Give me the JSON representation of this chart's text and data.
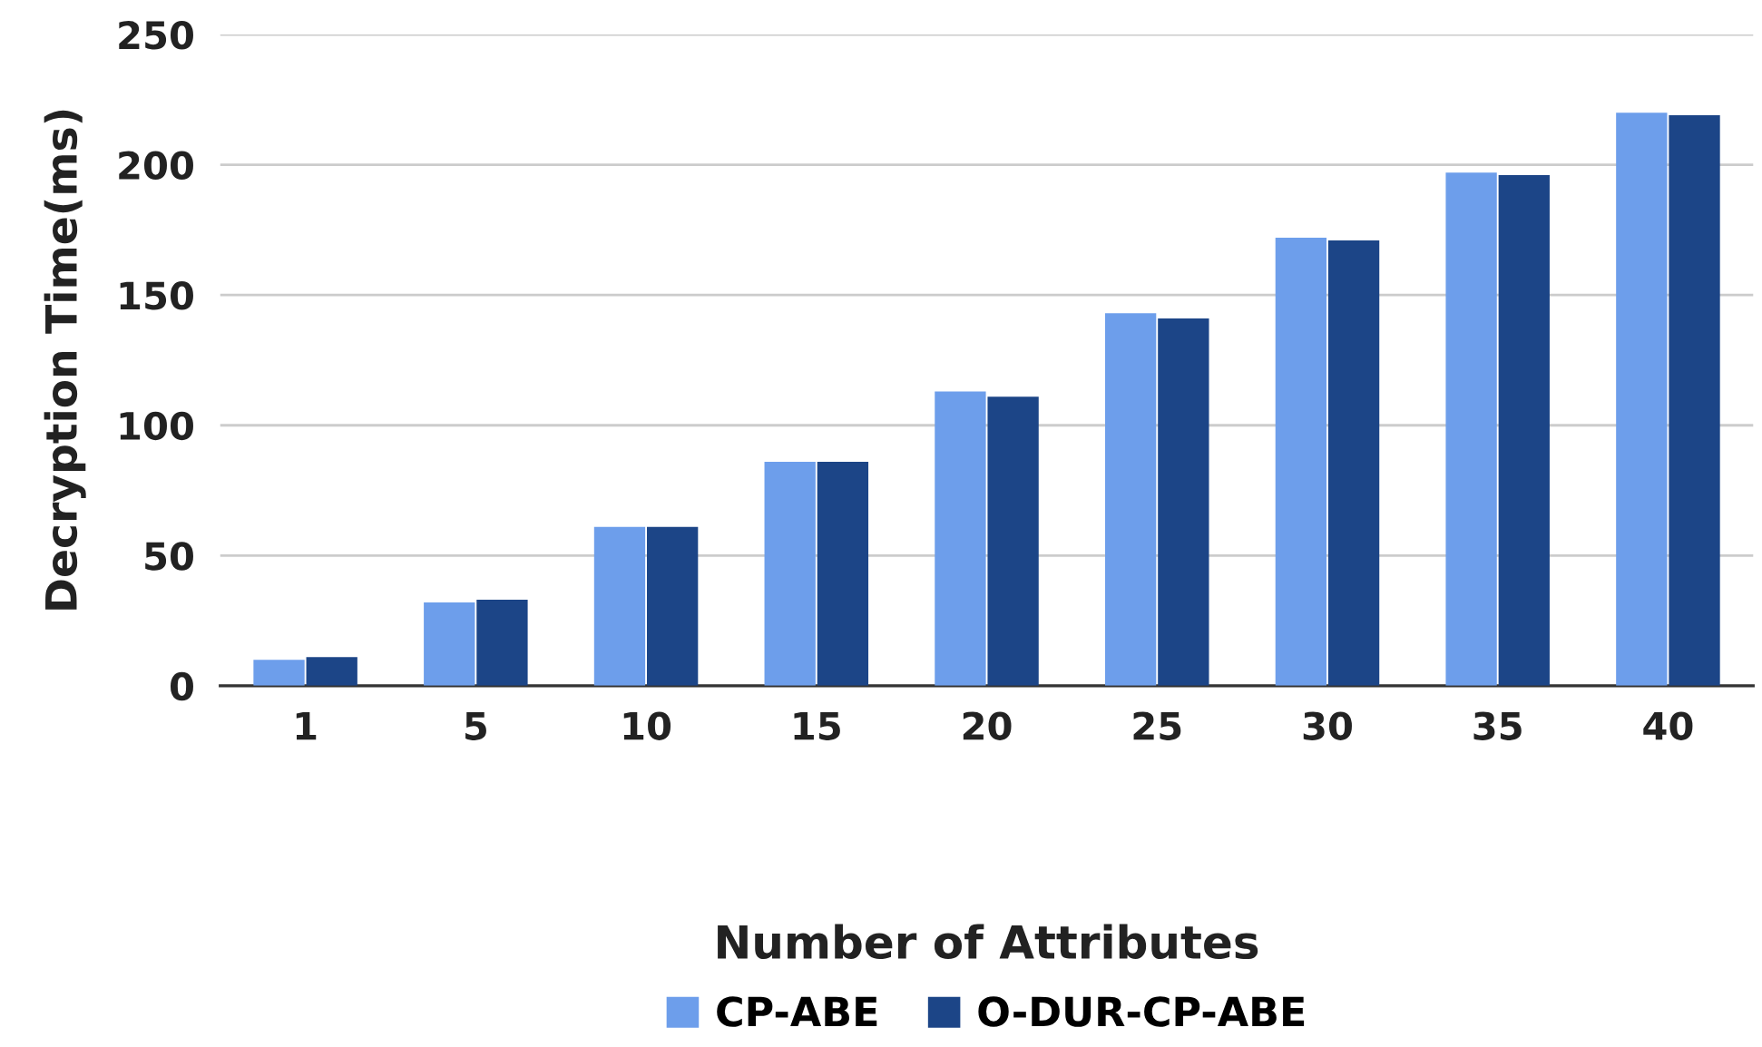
{
  "chart_data": {
    "type": "bar",
    "xlabel": "Number of Attributes",
    "ylabel": "Decryption Time(ms)",
    "categories": [
      "1",
      "5",
      "10",
      "15",
      "20",
      "25",
      "30",
      "35",
      "40"
    ],
    "series": [
      {
        "name": "CP-ABE",
        "color": "#6d9eeb",
        "values": [
          10,
          32,
          61,
          86,
          113,
          143,
          172,
          197,
          220
        ]
      },
      {
        "name": "O-DUR-CP-ABE",
        "color": "#1c4587",
        "values": [
          11,
          33,
          61,
          86,
          111,
          141,
          171,
          196,
          219
        ]
      }
    ],
    "ylim": [
      0,
      250
    ],
    "yticks": [
      0,
      50,
      100,
      150,
      200,
      250
    ],
    "grid": "y",
    "legend": "bottom"
  }
}
